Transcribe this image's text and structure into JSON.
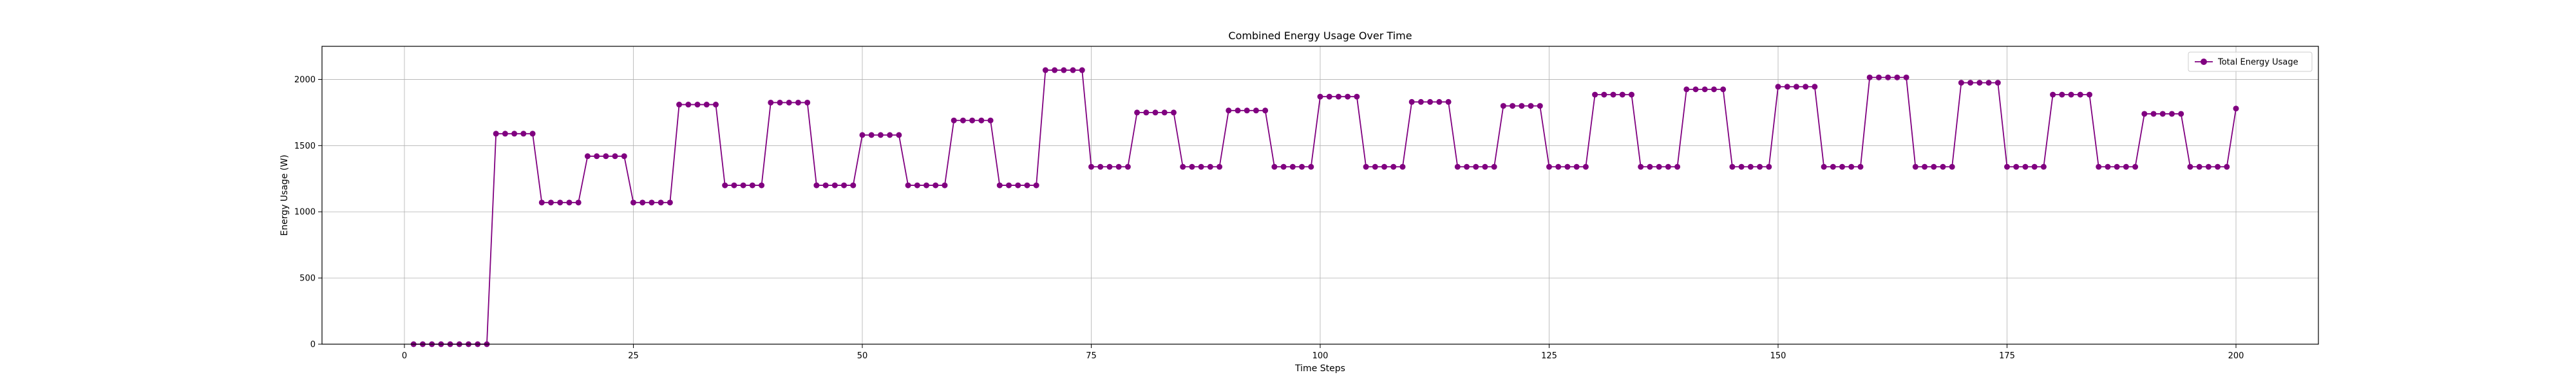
{
  "chart_data": {
    "type": "line",
    "title": "Combined Energy Usage Over Time",
    "xlabel": "Time Steps",
    "ylabel": "Energy Usage (W)",
    "xlim": [
      -9,
      209
    ],
    "ylim": [
      0,
      2250
    ],
    "x_ticks": [
      0,
      25,
      50,
      75,
      100,
      125,
      150,
      175,
      200
    ],
    "y_ticks": [
      0,
      500,
      1000,
      1500,
      2000
    ],
    "grid": true,
    "legend_position": "top-right",
    "series": [
      {
        "name": "Total Energy Usage",
        "color": "#800080",
        "marker": "circle",
        "x_start": 1,
        "values": [
          0,
          0,
          0,
          0,
          0,
          0,
          0,
          0,
          0,
          1590,
          1590,
          1590,
          1590,
          1590,
          1070,
          1070,
          1070,
          1070,
          1070,
          1420,
          1420,
          1420,
          1420,
          1420,
          1070,
          1070,
          1070,
          1070,
          1070,
          1810,
          1810,
          1810,
          1810,
          1810,
          1200,
          1200,
          1200,
          1200,
          1200,
          1825,
          1825,
          1825,
          1825,
          1825,
          1200,
          1200,
          1200,
          1200,
          1200,
          1580,
          1580,
          1580,
          1580,
          1580,
          1200,
          1200,
          1200,
          1200,
          1200,
          1690,
          1690,
          1690,
          1690,
          1690,
          1200,
          1200,
          1200,
          1200,
          1200,
          2070,
          2070,
          2070,
          2070,
          2070,
          1340,
          1340,
          1340,
          1340,
          1340,
          1750,
          1750,
          1750,
          1750,
          1750,
          1340,
          1340,
          1340,
          1340,
          1340,
          1765,
          1765,
          1765,
          1765,
          1765,
          1340,
          1340,
          1340,
          1340,
          1340,
          1870,
          1870,
          1870,
          1870,
          1870,
          1340,
          1340,
          1340,
          1340,
          1340,
          1830,
          1830,
          1830,
          1830,
          1830,
          1340,
          1340,
          1340,
          1340,
          1340,
          1800,
          1800,
          1800,
          1800,
          1800,
          1340,
          1340,
          1340,
          1340,
          1340,
          1885,
          1885,
          1885,
          1885,
          1885,
          1340,
          1340,
          1340,
          1340,
          1340,
          1925,
          1925,
          1925,
          1925,
          1925,
          1340,
          1340,
          1340,
          1340,
          1340,
          1945,
          1945,
          1945,
          1945,
          1945,
          1340,
          1340,
          1340,
          1340,
          1340,
          2015,
          2015,
          2015,
          2015,
          2015,
          1340,
          1340,
          1340,
          1340,
          1340,
          1975,
          1975,
          1975,
          1975,
          1975,
          1340,
          1340,
          1340,
          1340,
          1340,
          1885,
          1885,
          1885,
          1885,
          1885,
          1340,
          1340,
          1340,
          1340,
          1340,
          1740,
          1740,
          1740,
          1740,
          1740,
          1340,
          1340,
          1340,
          1340,
          1340,
          1780
        ]
      }
    ]
  }
}
